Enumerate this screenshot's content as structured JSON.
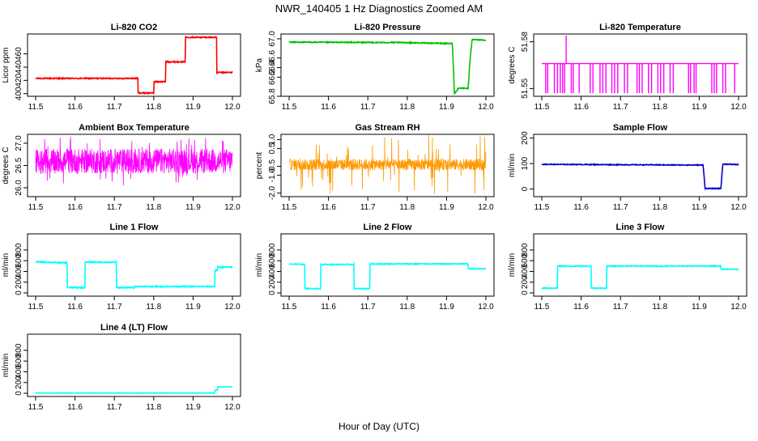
{
  "figure": {
    "title": "NWR_140405  1 Hz Diagnostics Zoomed AM",
    "xlabel": "Hour of Day (UTC)"
  },
  "chart_data": [
    {
      "type": "line",
      "title": "Li-820 CO2",
      "ylabel": "Licor ppm",
      "color": "#ff0000",
      "xlim": [
        11.5,
        12.0
      ],
      "xticks": [
        "11.5",
        "11.6",
        "11.7",
        "11.8",
        "11.9",
        "12.0"
      ],
      "ylim": [
        396,
        490
      ],
      "yticks": [
        "400",
        "420",
        "440",
        "460"
      ],
      "noise": 0.8,
      "series": [
        {
          "x": [
            11.5,
            11.76,
            11.76,
            11.8,
            11.8,
            11.83,
            11.83,
            11.88,
            11.88,
            11.96,
            11.96,
            12.0
          ],
          "y": [
            423,
            423,
            401,
            401,
            418,
            418,
            448,
            448,
            485,
            485,
            432,
            432
          ]
        }
      ]
    },
    {
      "type": "line",
      "title": "Li-820 Pressure",
      "ylabel": "kPa",
      "color": "#00c000",
      "xlim": [
        11.5,
        12.0
      ],
      "xticks": [
        "11.5",
        "11.6",
        "11.7",
        "11.8",
        "11.9",
        "12.0"
      ],
      "ylim": [
        65.8,
        67.1
      ],
      "yticks": [
        "65.8",
        "66.2",
        "66.4",
        "66.6",
        "67.0"
      ],
      "noise": 0.01,
      "series": [
        {
          "x": [
            11.5,
            11.8,
            11.915,
            11.92,
            11.93,
            11.955,
            11.96,
            11.965,
            11.975,
            12.0
          ],
          "y": [
            66.93,
            66.92,
            66.9,
            65.85,
            65.97,
            65.97,
            66.6,
            66.98,
            66.98,
            66.97
          ]
        }
      ]
    },
    {
      "type": "line",
      "title": "Li-820 Temperature",
      "ylabel": "degrees C",
      "color": "#ff00ff",
      "xlim": [
        11.5,
        12.0
      ],
      "xticks": [
        "11.5",
        "11.6",
        "11.7",
        "11.8",
        "11.9",
        "12.0"
      ],
      "ylim": [
        51.545,
        51.585
      ],
      "yticks": [
        "51.55",
        "51.58"
      ],
      "base": 51.566,
      "low": 51.547,
      "spike": {
        "x": 11.562,
        "y": 51.584
      },
      "dips": [
        11.51,
        11.515,
        11.532,
        11.54,
        11.547,
        11.553,
        11.558,
        11.575,
        11.58,
        11.595,
        11.623,
        11.63,
        11.648,
        11.655,
        11.663,
        11.678,
        11.685,
        11.693,
        11.71,
        11.718,
        11.742,
        11.748,
        11.755,
        11.771,
        11.779,
        11.795,
        11.802,
        11.81,
        11.826,
        11.834,
        11.873,
        11.878,
        11.887,
        11.892,
        11.932,
        11.938,
        11.944,
        11.96,
        11.967,
        11.99
      ]
    },
    {
      "type": "line",
      "title": "Ambient Box Temperature",
      "ylabel": "degrees C",
      "color": "#ff00ff",
      "xlim": [
        11.5,
        12.0
      ],
      "xticks": [
        "11.5",
        "11.6",
        "11.7",
        "11.8",
        "11.9",
        "12.0"
      ],
      "ylim": [
        25.8,
        27.2
      ],
      "yticks": [
        "26.0",
        "26.5",
        "27.0"
      ],
      "center": 26.6,
      "band": 0.28,
      "spread": 0.55
    },
    {
      "type": "line",
      "title": "Gas Stream RH",
      "ylabel": "percent",
      "color": "#ff9900",
      "xlim": [
        11.5,
        12.0
      ],
      "xticks": [
        "11.5",
        "11.6",
        "11.7",
        "11.8",
        "11.9",
        "12.0"
      ],
      "ylim": [
        -2.2,
        1.3
      ],
      "yticks": [
        "-2.0",
        "-1.0",
        "-0.5",
        "0.5",
        "1.0"
      ],
      "center": -0.4,
      "band": 0.32,
      "spread": 1.7
    },
    {
      "type": "line",
      "title": "Sample Flow",
      "ylabel": "ml/min",
      "color": "#0000cc",
      "xlim": [
        11.5,
        12.0
      ],
      "xticks": [
        "11.5",
        "11.6",
        "11.7",
        "11.8",
        "11.9",
        "12.0"
      ],
      "ylim": [
        -30,
        215
      ],
      "yticks": [
        "0",
        "100",
        "200"
      ],
      "noise": 1.5,
      "series": [
        {
          "x": [
            11.5,
            11.91,
            11.915,
            11.955,
            11.96,
            12.0
          ],
          "y": [
            97,
            94,
            2,
            2,
            98,
            96
          ]
        }
      ]
    },
    {
      "type": "line",
      "title": "Line 1 Flow",
      "ylabel": "ml/min",
      "color": "#00ffff",
      "xlim": [
        11.5,
        12.0
      ],
      "xticks": [
        "11.5",
        "11.6",
        "11.7",
        "11.8",
        "11.9",
        "12.0"
      ],
      "ylim": [
        -60,
        1100
      ],
      "yticks": [
        "0",
        "200",
        "400",
        "600",
        "800"
      ],
      "noise": 10,
      "series": [
        {
          "x": [
            11.5,
            11.58,
            11.58,
            11.625,
            11.625,
            11.705,
            11.705,
            11.75,
            11.75,
            11.955,
            11.955,
            11.962,
            11.962,
            12.0
          ],
          "y": [
            580,
            560,
            100,
            100,
            575,
            570,
            100,
            100,
            120,
            120,
            420,
            420,
            480,
            480
          ]
        }
      ]
    },
    {
      "type": "line",
      "title": "Line 2 Flow",
      "ylabel": "ml/min",
      "color": "#00ffff",
      "xlim": [
        11.5,
        12.0
      ],
      "xticks": [
        "11.5",
        "11.6",
        "11.7",
        "11.8",
        "11.9",
        "12.0"
      ],
      "ylim": [
        -60,
        1100
      ],
      "yticks": [
        "0",
        "200",
        "400",
        "600",
        "800"
      ],
      "noise": 8,
      "series": [
        {
          "x": [
            11.5,
            11.54,
            11.54,
            11.58,
            11.58,
            11.665,
            11.665,
            11.705,
            11.705,
            11.955,
            11.955,
            12.0
          ],
          "y": [
            540,
            530,
            80,
            80,
            530,
            530,
            80,
            80,
            540,
            540,
            450,
            450
          ]
        }
      ]
    },
    {
      "type": "line",
      "title": "Line 3 Flow",
      "ylabel": "ml/min",
      "color": "#00ffff",
      "xlim": [
        11.5,
        12.0
      ],
      "xticks": [
        "11.5",
        "11.6",
        "11.7",
        "11.8",
        "11.9",
        "12.0"
      ],
      "ylim": [
        -60,
        1100
      ],
      "yticks": [
        "0",
        "200",
        "400",
        "600",
        "800"
      ],
      "noise": 8,
      "series": [
        {
          "x": [
            11.5,
            11.54,
            11.54,
            11.625,
            11.625,
            11.665,
            11.665,
            11.955,
            11.955,
            12.0
          ],
          "y": [
            90,
            90,
            500,
            500,
            90,
            90,
            500,
            500,
            440,
            440
          ]
        }
      ]
    },
    {
      "type": "line",
      "title": "Line 4 (LT) Flow",
      "ylabel": "ml/min",
      "color": "#00ffff",
      "xlim": [
        11.5,
        12.0
      ],
      "xticks": [
        "11.5",
        "11.6",
        "11.7",
        "11.8",
        "11.9",
        "12.0"
      ],
      "ylim": [
        -60,
        1100
      ],
      "yticks": [
        "0",
        "200",
        "400",
        "600",
        "800"
      ],
      "noise": 3,
      "series": [
        {
          "x": [
            11.5,
            11.955,
            11.955,
            11.962,
            11.962,
            12.0
          ],
          "y": [
            5,
            5,
            60,
            60,
            120,
            120
          ]
        }
      ]
    }
  ]
}
